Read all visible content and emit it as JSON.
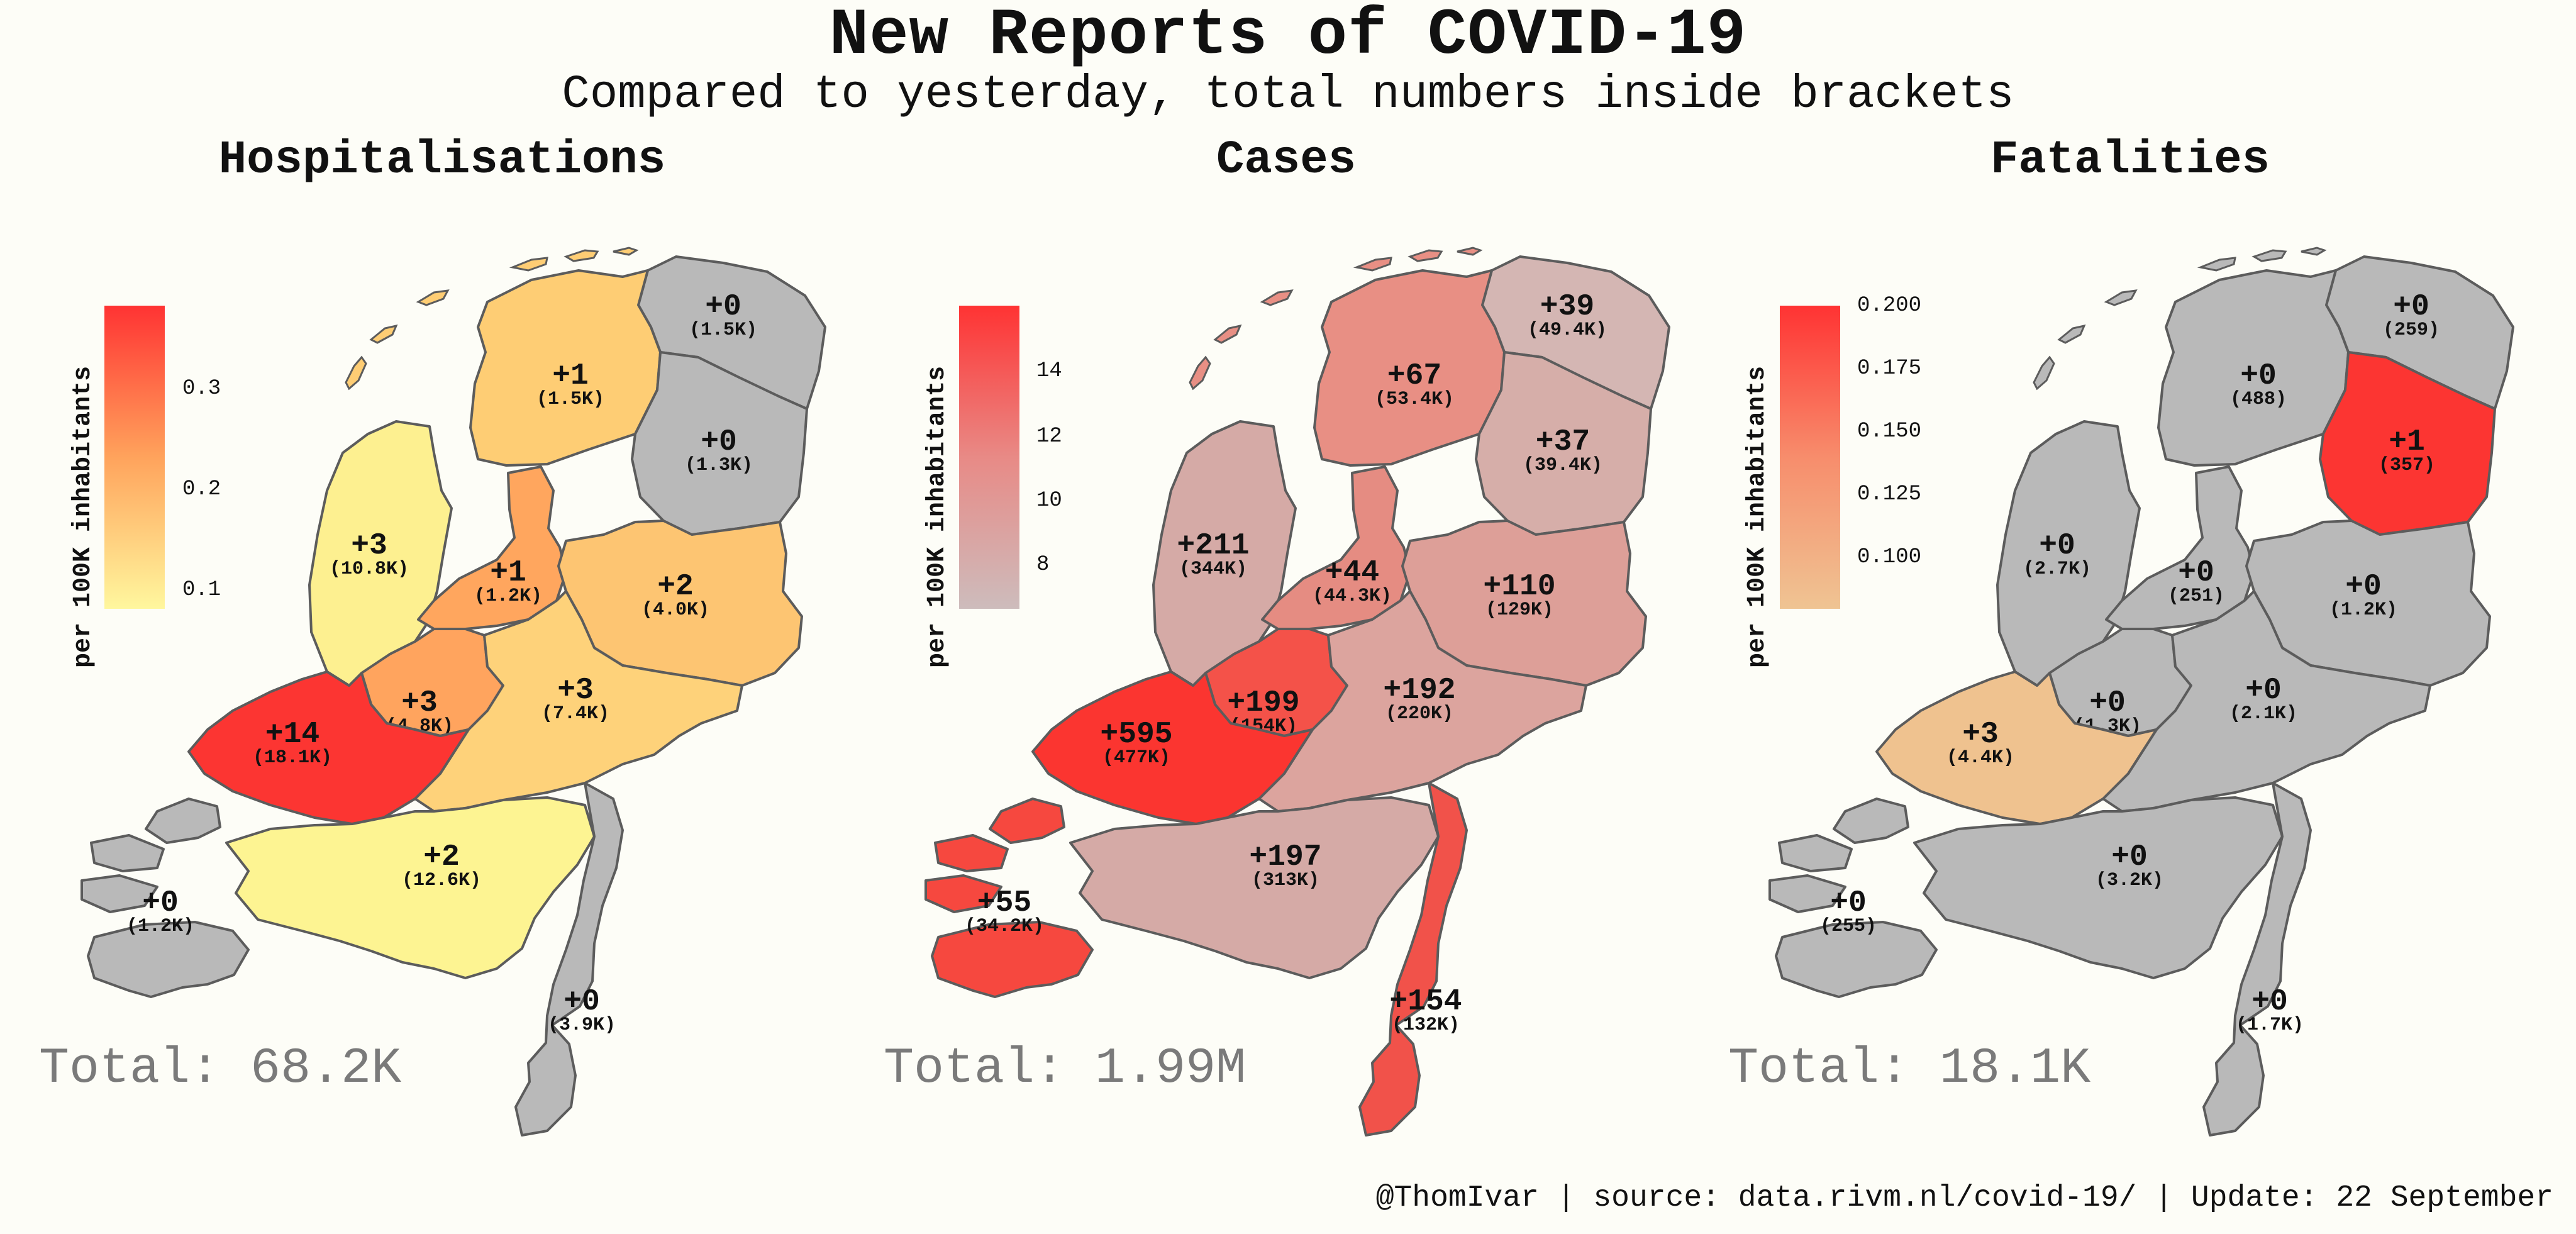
{
  "title": "New Reports of COVID-19",
  "subtitle": "Compared to yesterday, total numbers inside brackets",
  "footer": "@ThomIvar | source: data.rivm.nl/covid-19/ | Update: 22 September",
  "no_data_color": "#b9b9b9",
  "panels": [
    {
      "title": "Hospitalisations",
      "total": "Total: 68.2K",
      "legend": {
        "title": "per 100K inhabitants",
        "ticks": [
          "0.3",
          "0.2",
          "0.1"
        ],
        "colors": [
          "#ff3333",
          "#ffa35c",
          "#fff79e"
        ]
      },
      "regions": [
        {
          "name": "Groningen",
          "change": "+0",
          "total": "(1.5K)",
          "color": "#b9b9b9"
        },
        {
          "name": "Friesland",
          "change": "+1",
          "total": "(1.5K)",
          "color": "#fecd74"
        },
        {
          "name": "Drenthe",
          "change": "+0",
          "total": "(1.3K)",
          "color": "#b9b9b9"
        },
        {
          "name": "Noord-Holland",
          "change": "+3",
          "total": "(10.8K)",
          "color": "#fdf090"
        },
        {
          "name": "Flevoland",
          "change": "+1",
          "total": "(1.2K)",
          "color": "#ffa65e"
        },
        {
          "name": "Overijssel",
          "change": "+2",
          "total": "(4.0K)",
          "color": "#fdc572"
        },
        {
          "name": "Utrecht",
          "change": "+3",
          "total": "(4.8K)",
          "color": "#ffa45e"
        },
        {
          "name": "Gelderland",
          "change": "+3",
          "total": "(7.4K)",
          "color": "#fed27a"
        },
        {
          "name": "Zuid-Holland",
          "change": "+14",
          "total": "(18.1K)",
          "color": "#fc3532"
        },
        {
          "name": "Noord-Brabant",
          "change": "+2",
          "total": "(12.6K)",
          "color": "#fdf492"
        },
        {
          "name": "Zeeland",
          "change": "+0",
          "total": "(1.2K)",
          "color": "#b9b9b9"
        },
        {
          "name": "Limburg",
          "change": "+0",
          "total": "(3.9K)",
          "color": "#b9b9b9"
        }
      ]
    },
    {
      "title": "Cases",
      "total": "Total: 1.99M",
      "legend": {
        "title": "per 100K inhabitants",
        "ticks": [
          "14",
          "12",
          "10",
          "8"
        ],
        "colors": [
          "#ff3333",
          "#e88a86",
          "#cdbcbc"
        ]
      },
      "regions": [
        {
          "name": "Groningen",
          "change": "+39",
          "total": "(49.4K)",
          "color": "#d4b6b3"
        },
        {
          "name": "Friesland",
          "change": "+67",
          "total": "(53.4K)",
          "color": "#e88f84"
        },
        {
          "name": "Drenthe",
          "change": "+37",
          "total": "(39.4K)",
          "color": "#d6aea9"
        },
        {
          "name": "Noord-Holland",
          "change": "+211",
          "total": "(344K)",
          "color": "#d5aaa6"
        },
        {
          "name": "Flevoland",
          "change": "+44",
          "total": "(44.3K)",
          "color": "#e58c82"
        },
        {
          "name": "Overijssel",
          "change": "+110",
          "total": "(129K)",
          "color": "#dd9f98"
        },
        {
          "name": "Utrecht",
          "change": "+199",
          "total": "(154K)",
          "color": "#f45249"
        },
        {
          "name": "Gelderland",
          "change": "+192",
          "total": "(220K)",
          "color": "#dca49e"
        },
        {
          "name": "Zuid-Holland",
          "change": "+595",
          "total": "(477K)",
          "color": "#fb3530"
        },
        {
          "name": "Noord-Brabant",
          "change": "+197",
          "total": "(313K)",
          "color": "#d5aaa6"
        },
        {
          "name": "Zeeland",
          "change": "+55",
          "total": "(34.2K)",
          "color": "#f6483f"
        },
        {
          "name": "Limburg",
          "change": "+154",
          "total": "(132K)",
          "color": "#f1524a"
        }
      ]
    },
    {
      "title": "Fatalities",
      "total": "Total: 18.1K",
      "legend": {
        "title": "per 100K inhabitants",
        "ticks": [
          "0.200",
          "0.175",
          "0.150",
          "0.125",
          "0.100"
        ],
        "colors": [
          "#ff3333",
          "#f78d6c",
          "#efc493"
        ]
      },
      "regions": [
        {
          "name": "Groningen",
          "change": "+0",
          "total": "(259)",
          "color": "#b9b9b9"
        },
        {
          "name": "Friesland",
          "change": "+0",
          "total": "(488)",
          "color": "#b9b9b9"
        },
        {
          "name": "Drenthe",
          "change": "+1",
          "total": "(357)",
          "color": "#fc3532"
        },
        {
          "name": "Noord-Holland",
          "change": "+0",
          "total": "(2.7K)",
          "color": "#b9b9b9"
        },
        {
          "name": "Flevoland",
          "change": "+0",
          "total": "(251)",
          "color": "#b9b9b9"
        },
        {
          "name": "Overijssel",
          "change": "+0",
          "total": "(1.2K)",
          "color": "#b9b9b9"
        },
        {
          "name": "Utrecht",
          "change": "+0",
          "total": "(1.3K)",
          "color": "#b9b9b9"
        },
        {
          "name": "Gelderland",
          "change": "+0",
          "total": "(2.1K)",
          "color": "#b9b9b9"
        },
        {
          "name": "Zuid-Holland",
          "change": "+3",
          "total": "(4.4K)",
          "color": "#efc28f"
        },
        {
          "name": "Noord-Brabant",
          "change": "+0",
          "total": "(3.2K)",
          "color": "#b9b9b9"
        },
        {
          "name": "Zeeland",
          "change": "+0",
          "total": "(255)",
          "color": "#b9b9b9"
        },
        {
          "name": "Limburg",
          "change": "+0",
          "total": "(1.7K)",
          "color": "#b9b9b9"
        }
      ]
    }
  ]
}
